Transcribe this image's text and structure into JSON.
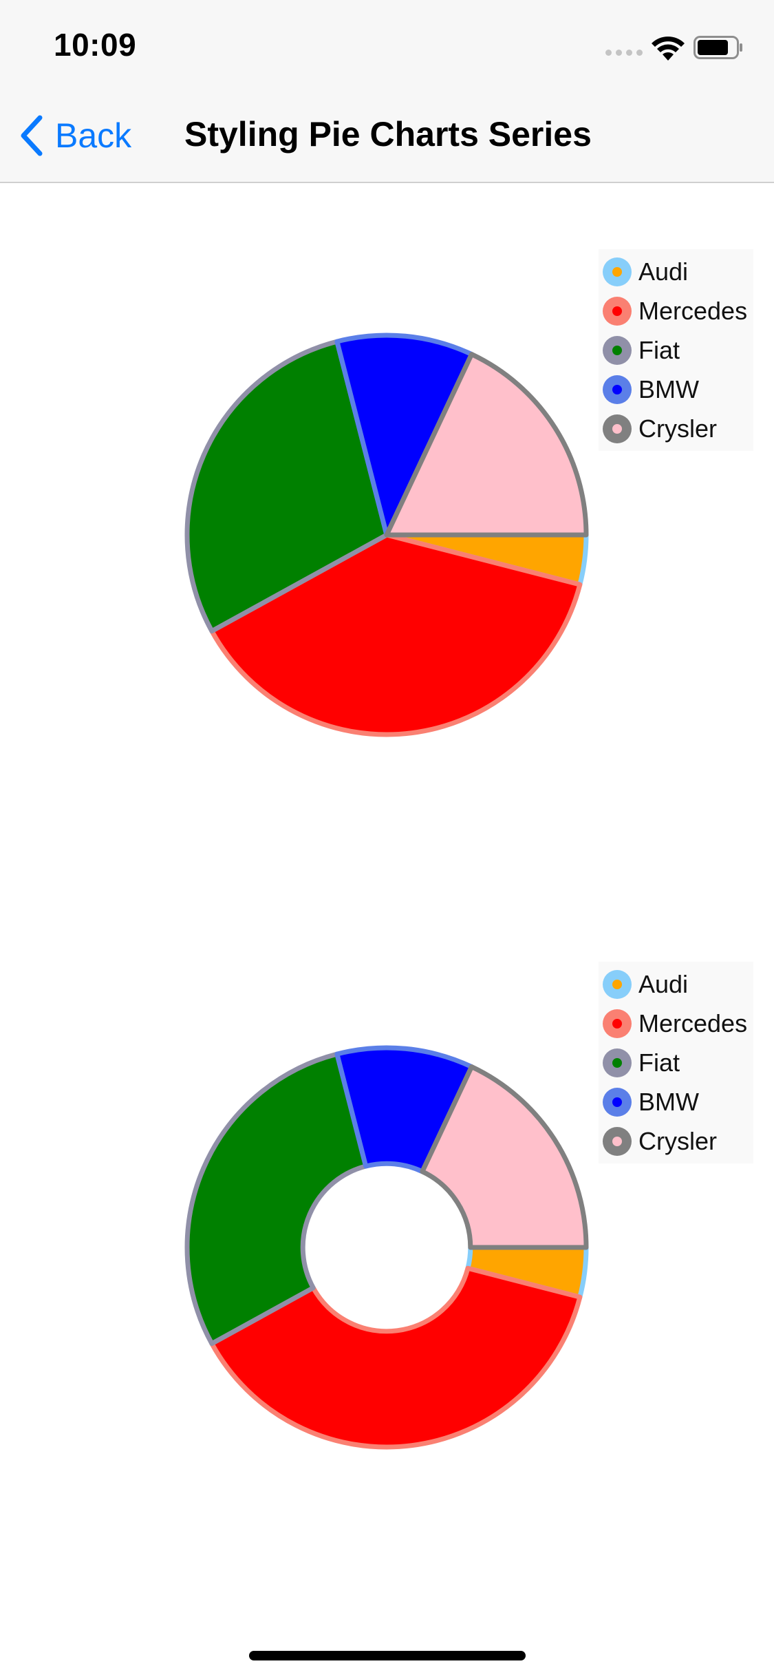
{
  "status_bar": {
    "time": "10:09"
  },
  "nav": {
    "back_label": "Back",
    "title": "Styling Pie Charts Series"
  },
  "charts": [
    {
      "name": "pie-chart",
      "chart_data": {
        "type": "pie",
        "hole_ratio": 0,
        "slices": [
          {
            "label": "Audi",
            "value": 4,
            "fill": "#ffa500",
            "stroke": "#87cefa"
          },
          {
            "label": "Mercedes",
            "value": 38,
            "fill": "#ff0000",
            "stroke": "#fa8072"
          },
          {
            "label": "Fiat",
            "value": 29,
            "fill": "#008000",
            "stroke": "#9090a8"
          },
          {
            "label": "BMW",
            "value": 11,
            "fill": "#0000ff",
            "stroke": "#5b7fe8"
          },
          {
            "label": "Crysler",
            "value": 18,
            "fill": "#ffc0cb",
            "stroke": "#808080"
          }
        ],
        "legend_position": "top-right"
      }
    },
    {
      "name": "donut-chart",
      "chart_data": {
        "type": "pie",
        "hole_ratio": 0.42,
        "slices": [
          {
            "label": "Audi",
            "value": 4,
            "fill": "#ffa500",
            "stroke": "#87cefa"
          },
          {
            "label": "Mercedes",
            "value": 38,
            "fill": "#ff0000",
            "stroke": "#fa8072"
          },
          {
            "label": "Fiat",
            "value": 29,
            "fill": "#008000",
            "stroke": "#9090a8"
          },
          {
            "label": "BMW",
            "value": 11,
            "fill": "#0000ff",
            "stroke": "#5b7fe8"
          },
          {
            "label": "Crysler",
            "value": 18,
            "fill": "#ffc0cb",
            "stroke": "#808080"
          }
        ],
        "legend_position": "top-right"
      }
    }
  ]
}
